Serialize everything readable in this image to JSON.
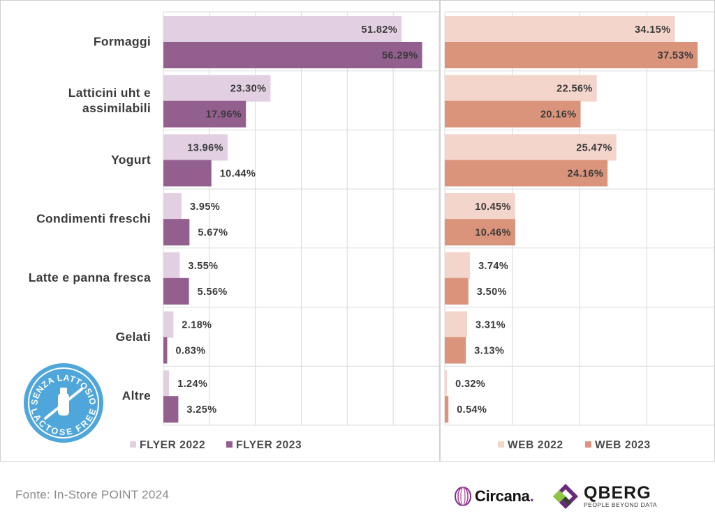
{
  "chart_data": [
    {
      "type": "bar",
      "orientation": "horizontal",
      "categories": [
        "Formaggi",
        "Latticini uht e assimilabili",
        "Yogurt",
        "Condimenti freschi",
        "Latte e panna fresca",
        "Gelati",
        "Altre"
      ],
      "category_lines": [
        [
          "Formaggi"
        ],
        [
          "Latticini uht e",
          "assimilabili"
        ],
        [
          "Yogurt"
        ],
        [
          "Condimenti freschi"
        ],
        [
          "Latte e panna fresca"
        ],
        [
          "Gelati"
        ],
        [
          "Altre"
        ]
      ],
      "series": [
        {
          "name": "FLYER 2022",
          "color": "#e2d0e2",
          "values": [
            51.82,
            23.3,
            13.96,
            3.95,
            3.55,
            2.18,
            1.24
          ],
          "labels": [
            "51.82%",
            "23.30%",
            "13.96%",
            "3.95%",
            "3.55%",
            "2.18%",
            "1.24%"
          ]
        },
        {
          "name": "FLYER 2023",
          "color": "#935f8f",
          "values": [
            56.29,
            17.96,
            10.44,
            5.67,
            5.56,
            0.83,
            3.25
          ],
          "labels": [
            "56.29%",
            "17.96%",
            "10.44%",
            "5.67%",
            "5.56%",
            "0.83%",
            "3.25%"
          ]
        }
      ],
      "xlim": [
        0,
        60
      ],
      "grid": true,
      "legend": "bottom"
    },
    {
      "type": "bar",
      "orientation": "horizontal",
      "categories": [
        "Formaggi",
        "Latticini uht e assimilabili",
        "Yogurt",
        "Condimenti freschi",
        "Latte e panna fresca",
        "Gelati",
        "Altre"
      ],
      "series": [
        {
          "name": "WEB 2022",
          "color": "#f4d5cb",
          "values": [
            34.15,
            22.56,
            25.47,
            10.45,
            3.74,
            3.31,
            0.32
          ],
          "labels": [
            "34.15%",
            "22.56%",
            "25.47%",
            "10.45%",
            "3.74%",
            "3.31%",
            "0.32%"
          ]
        },
        {
          "name": "WEB 2023",
          "color": "#db947c",
          "values": [
            37.53,
            20.16,
            24.16,
            10.46,
            3.5,
            3.13,
            0.54
          ],
          "labels": [
            "37.53%",
            "20.16%",
            "24.16%",
            "10.46%",
            "3.50%",
            "3.13%",
            "0.54%"
          ]
        }
      ],
      "xlim": [
        0,
        40
      ],
      "grid": true,
      "legend": "bottom"
    }
  ],
  "badge": {
    "top_text": "SENZA LATTOSIO",
    "bottom_text": "LACTOSE FREE",
    "color": "#4fa6da"
  },
  "footer": {
    "source": "Fonte: In-Store POINT 2024",
    "circana": "Circana",
    "circana_dot": ".",
    "qberg": "QBERG",
    "qberg_tagline": "PEOPLE BEYOND DATA"
  }
}
